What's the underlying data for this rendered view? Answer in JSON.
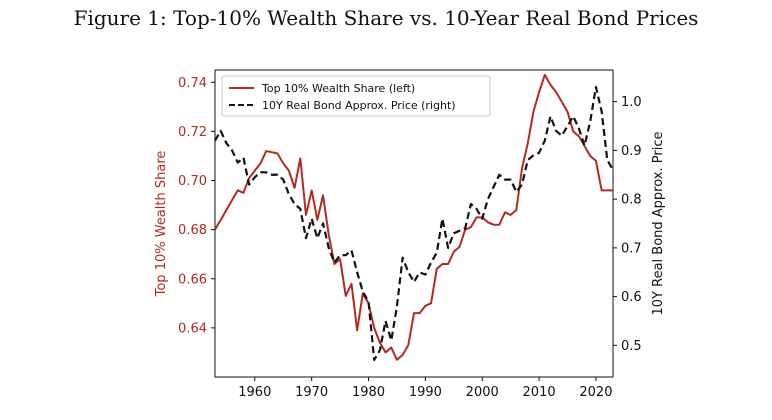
{
  "chart_data": {
    "type": "line",
    "title": "Figure 1: Top-10% Wealth Share vs. 10-Year Real Bond Prices",
    "xlabel": "",
    "ylabel_left": "Top 10% Wealth Share",
    "ylabel_right": "10Y Real Bond Approx. Price",
    "xlim": [
      1953,
      2023
    ],
    "ylim_left": [
      0.62,
      0.745
    ],
    "ylim_right": [
      0.435,
      1.065
    ],
    "x_ticks": [
      "1960",
      "1970",
      "1980",
      "1990",
      "2000",
      "2010",
      "2020"
    ],
    "x_tick_values": [
      1960,
      1970,
      1980,
      1990,
      2000,
      2010,
      2020
    ],
    "y_ticks_left": [
      "0.64",
      "0.66",
      "0.68",
      "0.70",
      "0.72",
      "0.74"
    ],
    "y_tick_values_left": [
      0.64,
      0.66,
      0.68,
      0.7,
      0.72,
      0.74
    ],
    "y_ticks_right": [
      "0.5",
      "0.6",
      "0.7",
      "0.8",
      "0.9",
      "1.0"
    ],
    "y_tick_values_right": [
      0.5,
      0.6,
      0.7,
      0.8,
      0.9,
      1.0
    ],
    "legend_position": "top-left",
    "x": [
      1953,
      1954,
      1955,
      1956,
      1957,
      1958,
      1959,
      1960,
      1961,
      1962,
      1963,
      1964,
      1965,
      1966,
      1967,
      1968,
      1969,
      1970,
      1971,
      1972,
      1973,
      1974,
      1975,
      1976,
      1977,
      1978,
      1979,
      1980,
      1981,
      1982,
      1983,
      1984,
      1985,
      1986,
      1987,
      1988,
      1989,
      1990,
      1991,
      1992,
      1993,
      1994,
      1995,
      1996,
      1997,
      1998,
      1999,
      2000,
      2001,
      2002,
      2003,
      2004,
      2005,
      2006,
      2007,
      2008,
      2009,
      2010,
      2011,
      2012,
      2013,
      2014,
      2015,
      2016,
      2017,
      2018,
      2019,
      2020,
      2021,
      2022,
      2023
    ],
    "series": [
      {
        "name": "Top 10% Wealth Share (left)",
        "axis": "left",
        "color": "#b22a22",
        "style": "solid",
        "values": [
          0.68,
          0.684,
          0.688,
          0.692,
          0.696,
          0.695,
          0.701,
          0.704,
          0.707,
          0.712,
          0.7115,
          0.711,
          0.707,
          0.704,
          0.697,
          0.709,
          0.686,
          0.696,
          0.684,
          0.694,
          0.678,
          0.666,
          0.668,
          0.653,
          0.658,
          0.639,
          0.654,
          0.65,
          0.64,
          0.634,
          0.63,
          0.632,
          0.627,
          0.629,
          0.633,
          0.646,
          0.646,
          0.649,
          0.65,
          0.664,
          0.666,
          0.666,
          0.671,
          0.673,
          0.68,
          0.681,
          0.685,
          0.685,
          0.683,
          0.682,
          0.682,
          0.687,
          0.686,
          0.688,
          0.705,
          0.715,
          0.728,
          0.736,
          0.743,
          0.739,
          0.736,
          0.732,
          0.728,
          0.72,
          0.718,
          0.714,
          0.71,
          0.708,
          0.696,
          0.696,
          0.696
        ]
      },
      {
        "name": "10Y Real Bond Approx. Price (right)",
        "axis": "right",
        "color": "#111111",
        "style": "dashed",
        "values": [
          0.92,
          0.94,
          0.915,
          0.9,
          0.875,
          0.885,
          0.83,
          0.845,
          0.855,
          0.855,
          0.85,
          0.85,
          0.84,
          0.81,
          0.79,
          0.78,
          0.72,
          0.76,
          0.72,
          0.75,
          0.7,
          0.67,
          0.685,
          0.685,
          0.695,
          0.65,
          0.61,
          0.59,
          0.47,
          0.49,
          0.55,
          0.51,
          0.58,
          0.68,
          0.65,
          0.63,
          0.65,
          0.645,
          0.67,
          0.69,
          0.76,
          0.7,
          0.73,
          0.735,
          0.74,
          0.79,
          0.78,
          0.76,
          0.8,
          0.825,
          0.85,
          0.84,
          0.84,
          0.815,
          0.83,
          0.88,
          0.89,
          0.895,
          0.92,
          0.97,
          0.94,
          0.93,
          0.95,
          0.97,
          0.945,
          0.91,
          0.96,
          1.03,
          0.98,
          0.88,
          0.86
        ]
      }
    ]
  }
}
